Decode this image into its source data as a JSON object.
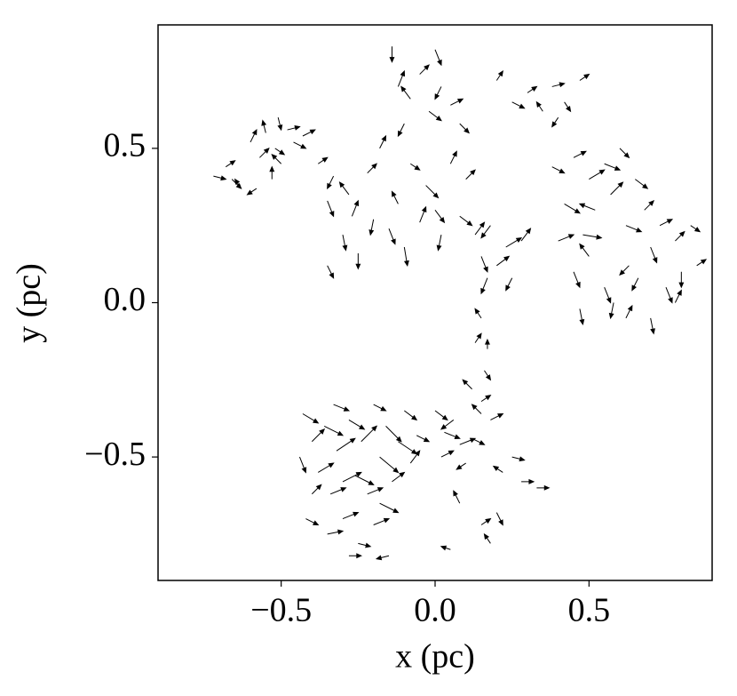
{
  "chart_data": {
    "type": "quiver",
    "xlabel": "x (pc)",
    "ylabel": "y (pc)",
    "color": "#000000",
    "xlim": [
      -0.9,
      0.9
    ],
    "ylim": [
      -0.9,
      0.9
    ],
    "xticks": [
      {
        "value": -0.5,
        "label": "−0.5"
      },
      {
        "value": 0,
        "label": "0.0"
      },
      0.5
    ],
    "yticks": [
      {
        "value": -0.5,
        "label": "−0.5"
      },
      {
        "value": 0,
        "label": "0.0"
      },
      0.5
    ],
    "arrows": [
      [
        -0.72,
        0.41,
        0.04,
        -0.01
      ],
      [
        -0.66,
        0.4,
        0.03,
        -0.03
      ],
      [
        -0.63,
        0.37,
        -0.02,
        0.03
      ],
      [
        -0.6,
        0.52,
        0.02,
        0.04
      ],
      [
        -0.57,
        0.47,
        0.03,
        0.03
      ],
      [
        -0.55,
        0.55,
        -0.01,
        0.04
      ],
      [
        -0.52,
        0.5,
        0.03,
        -0.02
      ],
      [
        -0.5,
        0.45,
        -0.03,
        0.03
      ],
      [
        -0.48,
        0.56,
        0.04,
        0.01
      ],
      [
        -0.53,
        0.4,
        0.0,
        0.04
      ],
      [
        -0.46,
        0.52,
        0.04,
        -0.02
      ],
      [
        -0.43,
        0.54,
        0.04,
        0.02
      ],
      [
        -0.58,
        0.37,
        -0.03,
        -0.02
      ],
      [
        -0.68,
        0.44,
        0.03,
        0.02
      ],
      [
        -0.51,
        0.6,
        0.01,
        -0.04
      ],
      [
        -0.38,
        0.45,
        0.03,
        0.02
      ],
      [
        -0.35,
        0.33,
        0.02,
        -0.05
      ],
      [
        -0.33,
        0.41,
        -0.02,
        -0.04
      ],
      [
        -0.3,
        0.22,
        0.01,
        -0.05
      ],
      [
        -0.27,
        0.28,
        0.02,
        0.05
      ],
      [
        -0.25,
        0.16,
        0.0,
        -0.05
      ],
      [
        -0.22,
        0.42,
        0.03,
        0.03
      ],
      [
        -0.2,
        0.27,
        -0.01,
        -0.05
      ],
      [
        -0.18,
        0.5,
        0.02,
        0.04
      ],
      [
        -0.15,
        0.24,
        0.02,
        -0.05
      ],
      [
        -0.12,
        0.32,
        -0.02,
        0.04
      ],
      [
        -0.1,
        0.18,
        0.01,
        -0.06
      ],
      [
        -0.08,
        0.45,
        0.03,
        -0.02
      ],
      [
        -0.05,
        0.26,
        0.02,
        0.05
      ],
      [
        -0.03,
        0.38,
        0.04,
        -0.04
      ],
      [
        0.0,
        0.3,
        0.03,
        -0.04
      ],
      [
        0.02,
        0.22,
        -0.01,
        -0.05
      ],
      [
        0.05,
        0.45,
        0.02,
        0.04
      ],
      [
        0.08,
        0.28,
        0.04,
        -0.03
      ],
      [
        0.1,
        0.4,
        0.03,
        0.03
      ],
      [
        0.13,
        0.22,
        0.03,
        0.04
      ],
      [
        0.15,
        0.15,
        0.02,
        -0.05
      ],
      [
        0.18,
        0.25,
        -0.03,
        -0.04
      ],
      [
        0.2,
        0.12,
        0.04,
        0.03
      ],
      [
        0.23,
        0.18,
        0.05,
        0.03
      ],
      [
        0.25,
        0.08,
        -0.02,
        -0.04
      ],
      [
        0.28,
        0.2,
        0.03,
        0.04
      ],
      [
        0.17,
        0.08,
        -0.02,
        -0.05
      ],
      [
        -0.35,
        0.12,
        0.02,
        -0.04
      ],
      [
        -0.28,
        0.35,
        -0.03,
        0.04
      ],
      [
        -0.14,
        0.83,
        0.0,
        -0.05
      ],
      [
        -0.12,
        0.7,
        0.02,
        0.05
      ],
      [
        -0.08,
        0.66,
        -0.03,
        0.04
      ],
      [
        -0.05,
        0.74,
        0.03,
        0.03
      ],
      [
        -0.02,
        0.62,
        0.04,
        -0.03
      ],
      [
        0.0,
        0.82,
        0.02,
        -0.05
      ],
      [
        0.02,
        0.7,
        -0.02,
        -0.04
      ],
      [
        0.05,
        0.64,
        0.04,
        0.02
      ],
      [
        0.08,
        0.58,
        0.03,
        -0.03
      ],
      [
        -0.1,
        0.58,
        -0.02,
        -0.04
      ],
      [
        0.25,
        0.65,
        0.04,
        -0.02
      ],
      [
        0.3,
        0.68,
        0.03,
        0.02
      ],
      [
        0.35,
        0.62,
        -0.02,
        0.03
      ],
      [
        0.38,
        0.7,
        0.04,
        0.01
      ],
      [
        0.42,
        0.65,
        0.02,
        -0.03
      ],
      [
        0.47,
        0.72,
        0.03,
        0.02
      ],
      [
        0.4,
        0.6,
        -0.02,
        -0.03
      ],
      [
        0.2,
        0.72,
        0.02,
        0.03
      ],
      [
        0.38,
        0.44,
        0.04,
        -0.02
      ],
      [
        0.42,
        0.32,
        0.05,
        -0.03
      ],
      [
        0.45,
        0.47,
        0.04,
        0.02
      ],
      [
        0.48,
        0.22,
        0.06,
        -0.01
      ],
      [
        0.5,
        0.4,
        0.05,
        0.03
      ],
      [
        0.52,
        0.3,
        -0.05,
        0.02
      ],
      [
        0.55,
        0.45,
        0.05,
        -0.02
      ],
      [
        0.57,
        0.35,
        0.04,
        0.04
      ],
      [
        0.6,
        0.5,
        0.03,
        -0.03
      ],
      [
        0.62,
        0.25,
        0.05,
        -0.02
      ],
      [
        0.65,
        0.4,
        0.04,
        -0.03
      ],
      [
        0.68,
        0.3,
        0.03,
        0.03
      ],
      [
        0.7,
        0.18,
        0.02,
        -0.05
      ],
      [
        0.73,
        0.25,
        0.04,
        0.02
      ],
      [
        0.75,
        0.05,
        0.02,
        -0.05
      ],
      [
        0.78,
        0.2,
        0.03,
        0.03
      ],
      [
        0.8,
        0.1,
        0.0,
        -0.05
      ],
      [
        0.83,
        0.25,
        0.03,
        -0.02
      ],
      [
        0.85,
        0.12,
        0.03,
        0.02
      ],
      [
        0.45,
        0.1,
        0.02,
        -0.05
      ],
      [
        0.5,
        0.15,
        -0.03,
        0.04
      ],
      [
        0.55,
        0.05,
        0.02,
        -0.05
      ],
      [
        0.58,
        0.0,
        -0.01,
        -0.05
      ],
      [
        0.62,
        -0.05,
        0.02,
        0.04
      ],
      [
        0.66,
        0.08,
        -0.02,
        -0.04
      ],
      [
        0.7,
        -0.05,
        0.01,
        -0.05
      ],
      [
        0.4,
        0.2,
        0.05,
        0.02
      ],
      [
        0.47,
        -0.02,
        0.01,
        -0.05
      ],
      [
        0.63,
        0.12,
        -0.03,
        -0.03
      ],
      [
        0.78,
        0.0,
        0.02,
        0.04
      ],
      [
        0.15,
        -0.05,
        -0.02,
        0.03
      ],
      [
        0.13,
        -0.13,
        0.02,
        0.03
      ],
      [
        0.17,
        -0.15,
        0.0,
        0.03
      ],
      [
        0.16,
        -0.22,
        0.02,
        -0.03
      ],
      [
        0.12,
        -0.28,
        -0.03,
        0.03
      ],
      [
        0.15,
        -0.32,
        0.03,
        0.02
      ],
      [
        -0.43,
        -0.36,
        0.05,
        -0.03
      ],
      [
        -0.4,
        -0.45,
        0.04,
        0.04
      ],
      [
        -0.38,
        -0.55,
        0.05,
        0.03
      ],
      [
        -0.36,
        -0.4,
        0.06,
        -0.03
      ],
      [
        -0.34,
        -0.62,
        0.05,
        0.02
      ],
      [
        -0.32,
        -0.48,
        0.06,
        0.04
      ],
      [
        -0.3,
        -0.7,
        0.05,
        0.02
      ],
      [
        -0.28,
        -0.38,
        0.05,
        -0.03
      ],
      [
        -0.26,
        -0.56,
        0.06,
        -0.03
      ],
      [
        -0.24,
        -0.45,
        0.05,
        0.05
      ],
      [
        -0.22,
        -0.62,
        0.05,
        0.02
      ],
      [
        -0.2,
        -0.33,
        0.04,
        -0.02
      ],
      [
        -0.18,
        -0.5,
        0.06,
        -0.05
      ],
      [
        -0.16,
        -0.4,
        0.05,
        -0.05
      ],
      [
        -0.14,
        -0.58,
        0.04,
        0.03
      ],
      [
        -0.12,
        -0.45,
        0.06,
        -0.04
      ],
      [
        -0.1,
        -0.35,
        0.04,
        -0.03
      ],
      [
        -0.08,
        -0.52,
        0.03,
        0.04
      ],
      [
        -0.35,
        -0.75,
        0.05,
        0.01
      ],
      [
        -0.25,
        -0.78,
        0.04,
        -0.01
      ],
      [
        -0.2,
        -0.72,
        0.05,
        0.02
      ],
      [
        -0.42,
        -0.7,
        0.04,
        -0.02
      ],
      [
        -0.4,
        -0.62,
        0.03,
        0.03
      ],
      [
        -0.44,
        -0.5,
        0.02,
        -0.05
      ],
      [
        -0.3,
        -0.58,
        0.06,
        0.03
      ],
      [
        -0.18,
        -0.65,
        0.06,
        -0.03
      ],
      [
        -0.15,
        -0.82,
        -0.04,
        -0.01
      ],
      [
        -0.33,
        -0.33,
        0.05,
        -0.02
      ],
      [
        -0.06,
        -0.43,
        0.04,
        -0.02
      ],
      [
        -0.28,
        -0.82,
        0.04,
        0.0
      ],
      [
        0.0,
        -0.35,
        0.04,
        -0.03
      ],
      [
        0.03,
        -0.42,
        0.05,
        -0.02
      ],
      [
        0.06,
        -0.38,
        -0.04,
        -0.03
      ],
      [
        0.08,
        -0.46,
        0.05,
        0.02
      ],
      [
        0.12,
        -0.44,
        0.04,
        -0.02
      ],
      [
        0.15,
        -0.36,
        -0.03,
        0.03
      ],
      [
        0.18,
        -0.38,
        0.04,
        0.02
      ],
      [
        0.02,
        -0.5,
        0.04,
        0.02
      ],
      [
        0.1,
        -0.52,
        -0.03,
        -0.02
      ],
      [
        0.25,
        -0.5,
        0.04,
        -0.01
      ],
      [
        0.28,
        -0.58,
        0.04,
        0.0
      ],
      [
        0.33,
        -0.6,
        0.04,
        0.0
      ],
      [
        0.22,
        -0.55,
        -0.03,
        0.02
      ],
      [
        0.08,
        -0.65,
        -0.02,
        0.04
      ],
      [
        0.15,
        -0.72,
        0.03,
        0.02
      ],
      [
        0.18,
        -0.78,
        -0.02,
        0.03
      ],
      [
        0.05,
        -0.8,
        -0.03,
        0.01
      ],
      [
        0.2,
        -0.68,
        0.02,
        -0.04
      ]
    ]
  }
}
